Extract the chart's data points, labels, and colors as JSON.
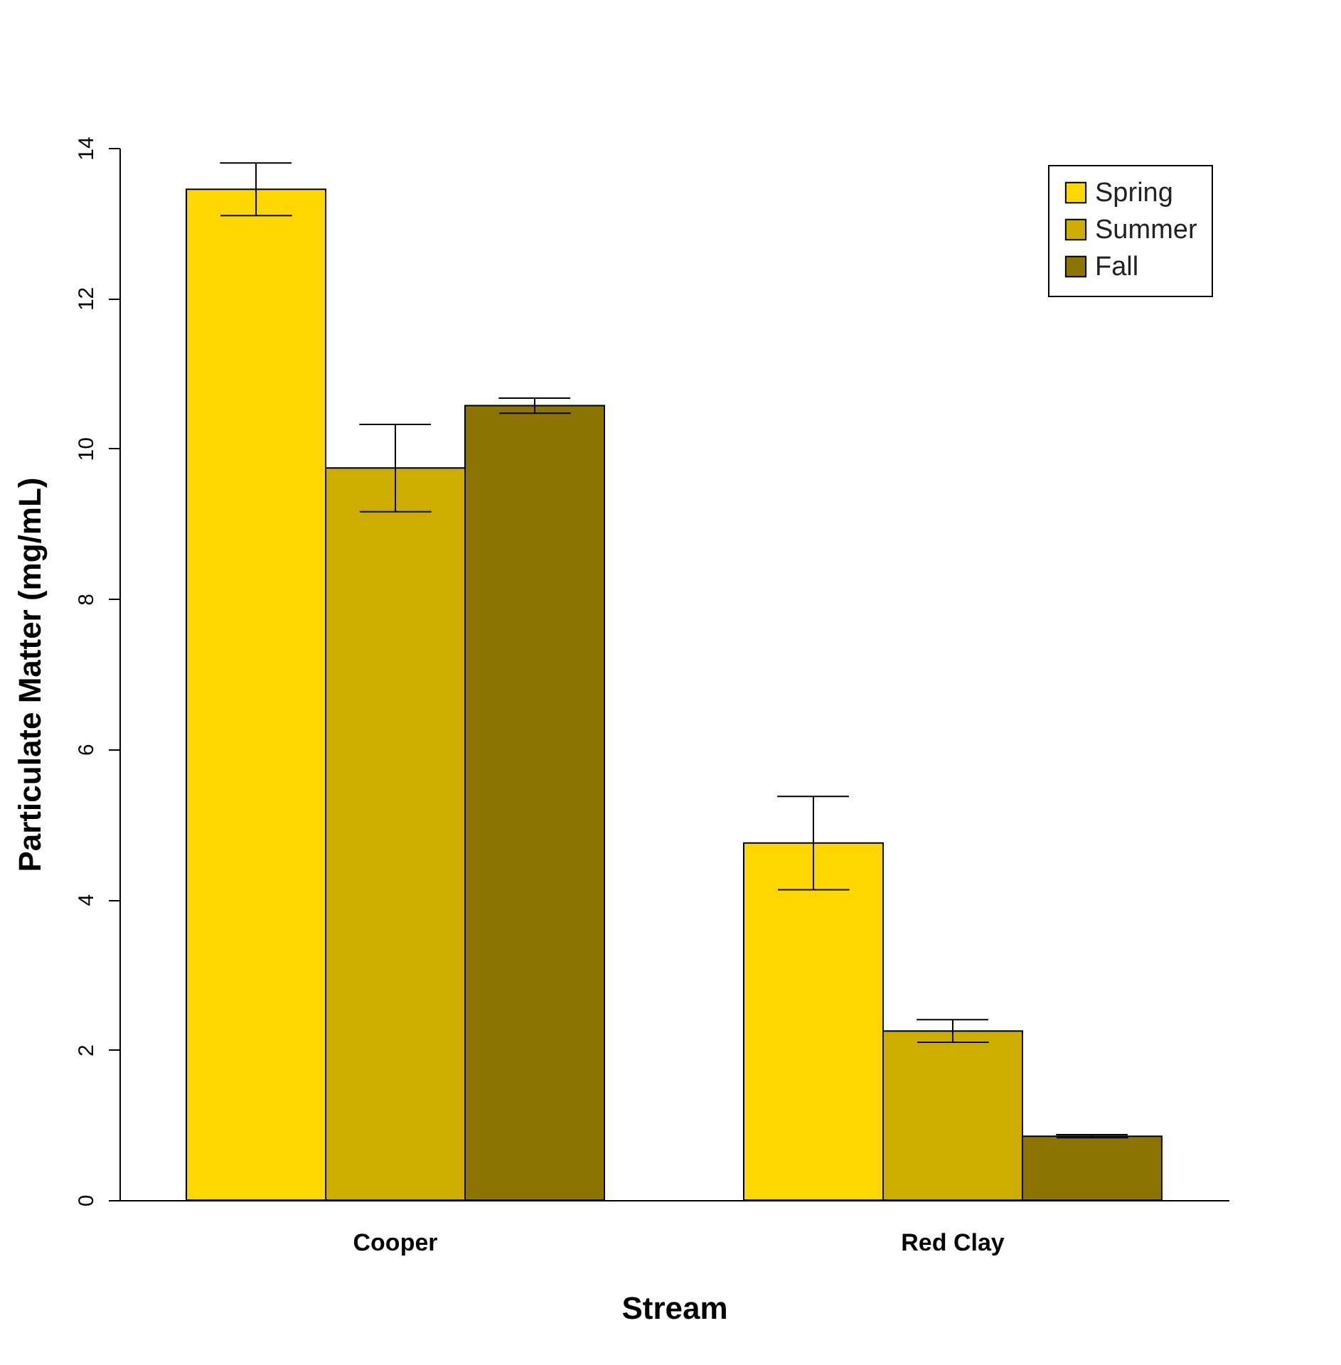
{
  "chart_data": {
    "type": "bar",
    "xlabel": "Stream",
    "ylabel": "Particulate Matter (mg/mL)",
    "categories": [
      "Cooper",
      "Red Clay"
    ],
    "series": [
      {
        "name": "Spring",
        "color": "#ffd700",
        "values": [
          13.45,
          4.75
        ],
        "errors": [
          0.35,
          0.62
        ]
      },
      {
        "name": "Summer",
        "color": "#cdad00",
        "values": [
          9.74,
          2.25
        ],
        "errors": [
          0.58,
          0.15
        ]
      },
      {
        "name": "Fall",
        "color": "#8b7500",
        "values": [
          10.57,
          0.85
        ],
        "errors": [
          0.1,
          0.02
        ]
      }
    ],
    "ylim": [
      0,
      14
    ],
    "yticks": [
      0,
      2,
      4,
      6,
      8,
      10,
      12,
      14
    ],
    "grid": false,
    "legend": "top right"
  }
}
